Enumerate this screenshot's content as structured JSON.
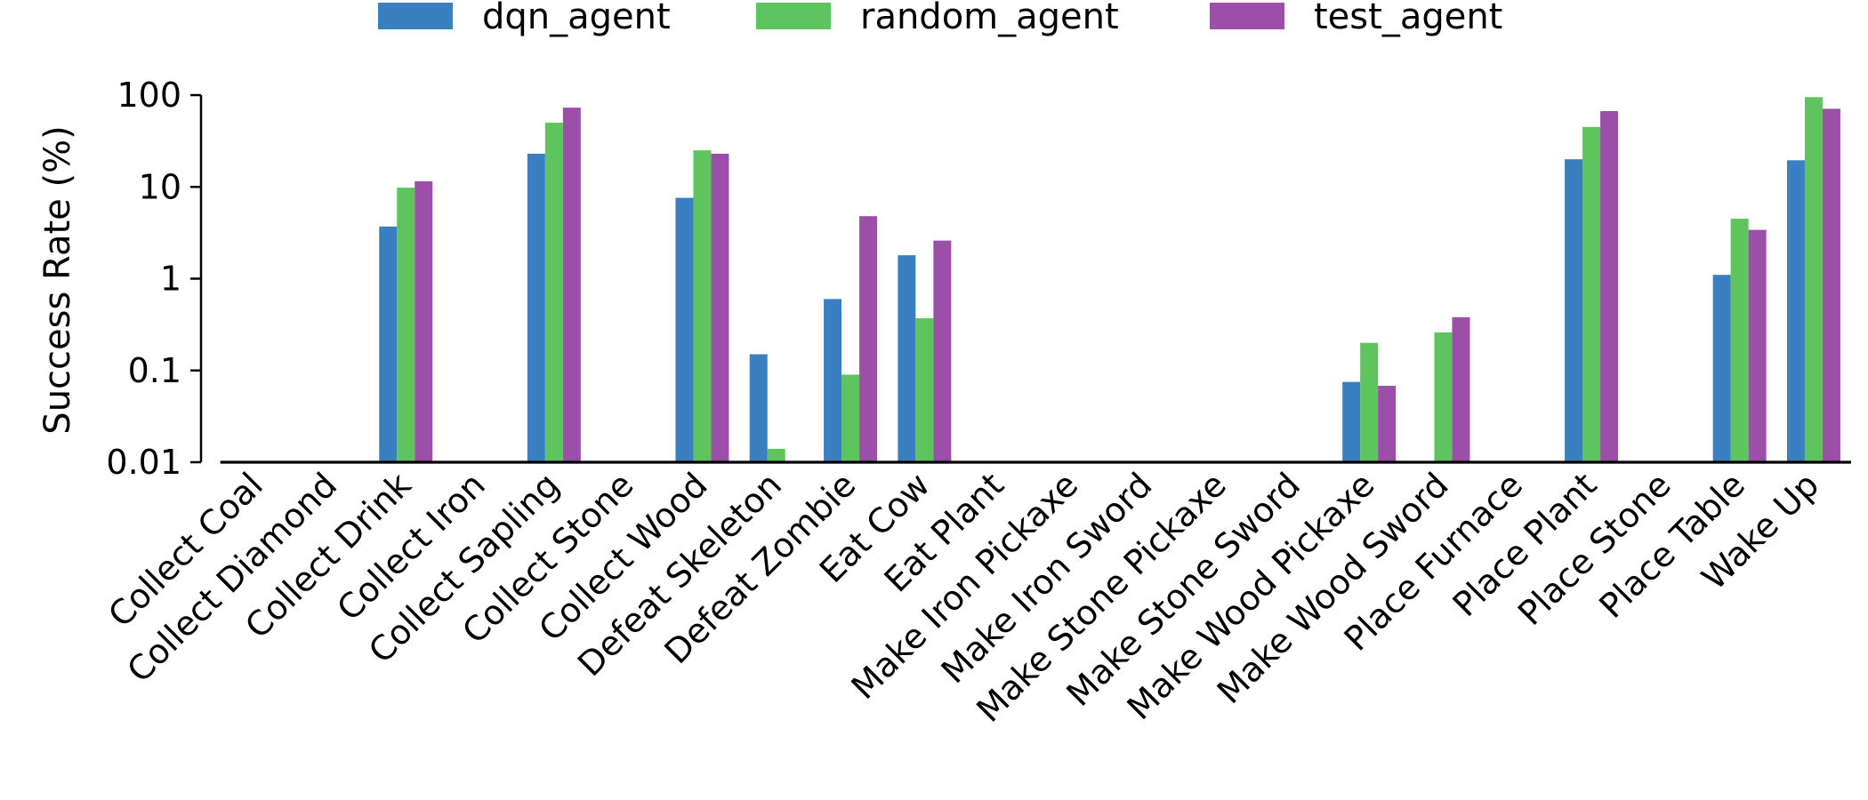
{
  "chart_data": {
    "type": "bar",
    "title": "",
    "xlabel": "",
    "ylabel": "Success Rate (%)",
    "yscale": "log",
    "ylim": [
      0.01,
      100
    ],
    "yticks": [
      {
        "value": 0.01,
        "label": "0.01"
      },
      {
        "value": 0.1,
        "label": "0.1"
      },
      {
        "value": 1,
        "label": "1"
      },
      {
        "value": 10,
        "label": "10"
      },
      {
        "value": 100,
        "label": "100"
      }
    ],
    "grid": false,
    "legend_position": "top-center",
    "categories": [
      "Collect Coal",
      "Collect Diamond",
      "Collect Drink",
      "Collect Iron",
      "Collect Sapling",
      "Collect Stone",
      "Collect Wood",
      "Defeat Skeleton",
      "Defeat Zombie",
      "Eat Cow",
      "Eat Plant",
      "Make Iron Pickaxe",
      "Make Iron Sword",
      "Make Stone Pickaxe",
      "Make Stone Sword",
      "Make Wood Pickaxe",
      "Make Wood Sword",
      "Place Furnace",
      "Place Plant",
      "Place Stone",
      "Place Table",
      "Wake Up"
    ],
    "series": [
      {
        "name": "dqn_agent",
        "color": "#3a7fbf",
        "values": [
          0,
          0,
          3.7,
          0,
          23,
          0,
          7.6,
          0.15,
          0.6,
          1.8,
          0,
          0,
          0,
          0,
          0,
          0.075,
          0,
          0,
          20,
          0,
          1.1,
          19.5
        ]
      },
      {
        "name": "random_agent",
        "color": "#5ec45e",
        "values": [
          0,
          0,
          9.8,
          0,
          50,
          0,
          25,
          0.014,
          0.09,
          0.37,
          0,
          0,
          0,
          0,
          0,
          0.2,
          0.26,
          0,
          45,
          0,
          4.5,
          95
        ]
      },
      {
        "name": "test_agent",
        "color": "#9b4fa8",
        "values": [
          0,
          0,
          11.5,
          0,
          73,
          0,
          23,
          0,
          4.8,
          2.6,
          0,
          0,
          0,
          0,
          0,
          0.068,
          0.38,
          0,
          67,
          0,
          3.4,
          71
        ]
      }
    ]
  }
}
